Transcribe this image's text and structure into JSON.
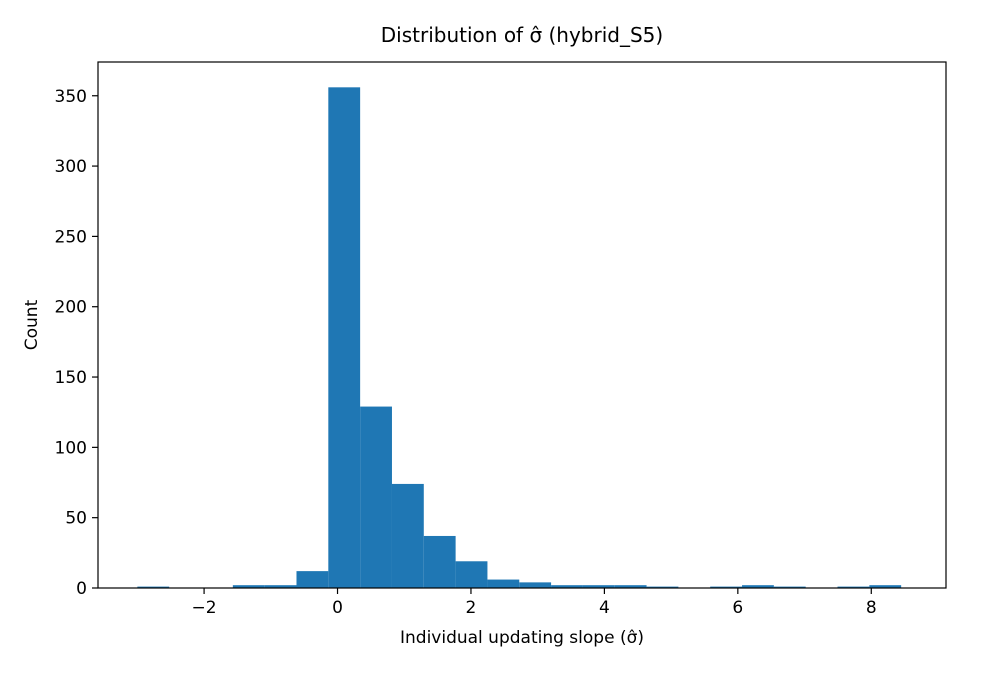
{
  "chart_data": {
    "type": "bar",
    "title": "Distribution of σ̂ (hybrid_S5)",
    "xlabel": "Individual updating slope (σ̂)",
    "ylabel": "Count",
    "xlim": [
      -3.59,
      9.12
    ],
    "ylim": [
      0,
      374
    ],
    "x_ticks": [
      -2,
      0,
      2,
      4,
      6,
      8
    ],
    "x_tick_labels": [
      "−2",
      "0",
      "2",
      "4",
      "6",
      "8"
    ],
    "y_ticks": [
      0,
      50,
      100,
      150,
      200,
      250,
      300,
      350
    ],
    "y_tick_labels": [
      "0",
      "50",
      "100",
      "150",
      "200",
      "250",
      "300",
      "350"
    ],
    "bar_color": "#1f77b4",
    "bin_edges": [
      -3.0,
      -2.523,
      -2.046,
      -1.569,
      -1.092,
      -0.615,
      -0.138,
      0.339,
      0.816,
      1.293,
      1.77,
      2.247,
      2.724,
      3.201,
      3.678,
      4.155,
      4.632,
      5.109,
      5.586,
      6.063,
      6.54,
      7.017,
      7.494,
      7.971,
      8.448
    ],
    "counts": [
      1,
      0,
      0,
      2,
      2,
      12,
      356,
      129,
      74,
      37,
      19,
      6,
      4,
      2,
      2,
      2,
      1,
      0,
      1,
      2,
      1,
      0,
      1,
      2
    ],
    "grid": false,
    "legend": "none"
  }
}
